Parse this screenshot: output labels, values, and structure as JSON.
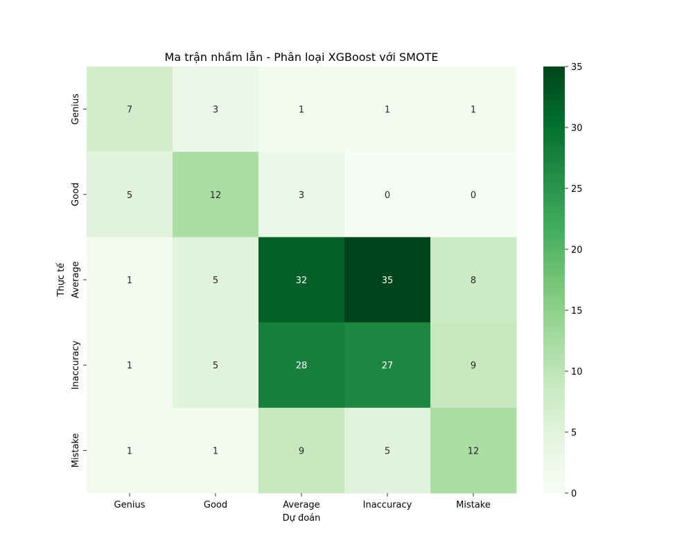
{
  "chart_data": {
    "type": "heatmap",
    "title": "Ma trận nhầm lẫn - Phân loại XGBoost với SMOTE",
    "xlabel": "Dự đoán",
    "ylabel": "Thực tế",
    "x_categories": [
      "Genius",
      "Good",
      "Average",
      "Inaccuracy",
      "Mistake"
    ],
    "y_categories": [
      "Genius",
      "Good",
      "Average",
      "Inaccuracy",
      "Mistake"
    ],
    "values": [
      [
        7,
        3,
        1,
        1,
        1
      ],
      [
        5,
        12,
        3,
        0,
        0
      ],
      [
        1,
        5,
        32,
        35,
        8
      ],
      [
        1,
        5,
        28,
        27,
        9
      ],
      [
        1,
        1,
        9,
        5,
        12
      ]
    ],
    "colorbar": {
      "min": 0,
      "max": 35,
      "ticks": [
        0,
        5,
        10,
        15,
        20,
        25,
        30,
        35
      ]
    },
    "colormap": "Greens",
    "colormap_stops": [
      "#f7fcf5",
      "#e5f5e0",
      "#c7e9c0",
      "#a1d99b",
      "#74c476",
      "#41ab5d",
      "#238b45",
      "#006d2c",
      "#00441b"
    ]
  }
}
